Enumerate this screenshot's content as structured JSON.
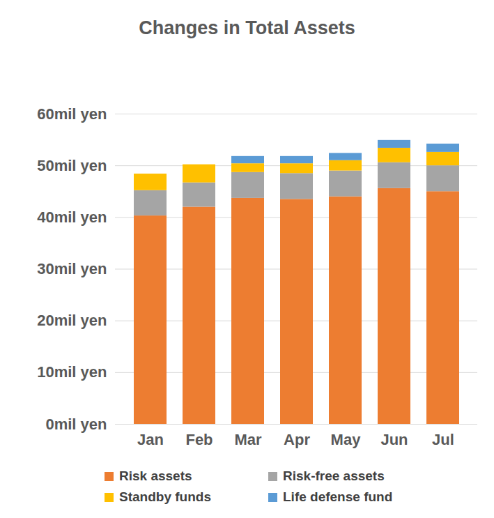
{
  "chart_data": {
    "type": "bar",
    "title": "Changes in Total Assets",
    "stacked": true,
    "grid": true,
    "legend": "bottom",
    "categories": [
      "Jan",
      "Feb",
      "Mar",
      "Apr",
      "May",
      "Jun",
      "Jul"
    ],
    "series": [
      {
        "name": "Risk assets",
        "color": "#ed7d31",
        "values": [
          40.3,
          42.0,
          43.7,
          43.5,
          44.0,
          45.6,
          45.0
        ]
      },
      {
        "name": "Risk-free assets",
        "color": "#a5a5a5",
        "values": [
          4.9,
          4.7,
          5.0,
          5.0,
          5.0,
          5.0,
          5.0
        ]
      },
      {
        "name": "Standby funds",
        "color": "#ffc000",
        "values": [
          3.2,
          3.5,
          1.7,
          1.9,
          2.0,
          2.8,
          2.6
        ]
      },
      {
        "name": "Life defense fund",
        "color": "#5b9bd5",
        "values": [
          0,
          0,
          1.4,
          1.4,
          1.4,
          1.5,
          1.6
        ]
      }
    ],
    "ylim": [
      0,
      60
    ],
    "yticks": [
      {
        "value": 0,
        "label": "0mil yen"
      },
      {
        "value": 10,
        "label": "10mil yen"
      },
      {
        "value": 20,
        "label": "20mil yen"
      },
      {
        "value": 30,
        "label": "30mil yen"
      },
      {
        "value": 40,
        "label": "40mil yen"
      },
      {
        "value": 50,
        "label": "50mil yen"
      },
      {
        "value": 60,
        "label": "60mil yen"
      }
    ]
  }
}
